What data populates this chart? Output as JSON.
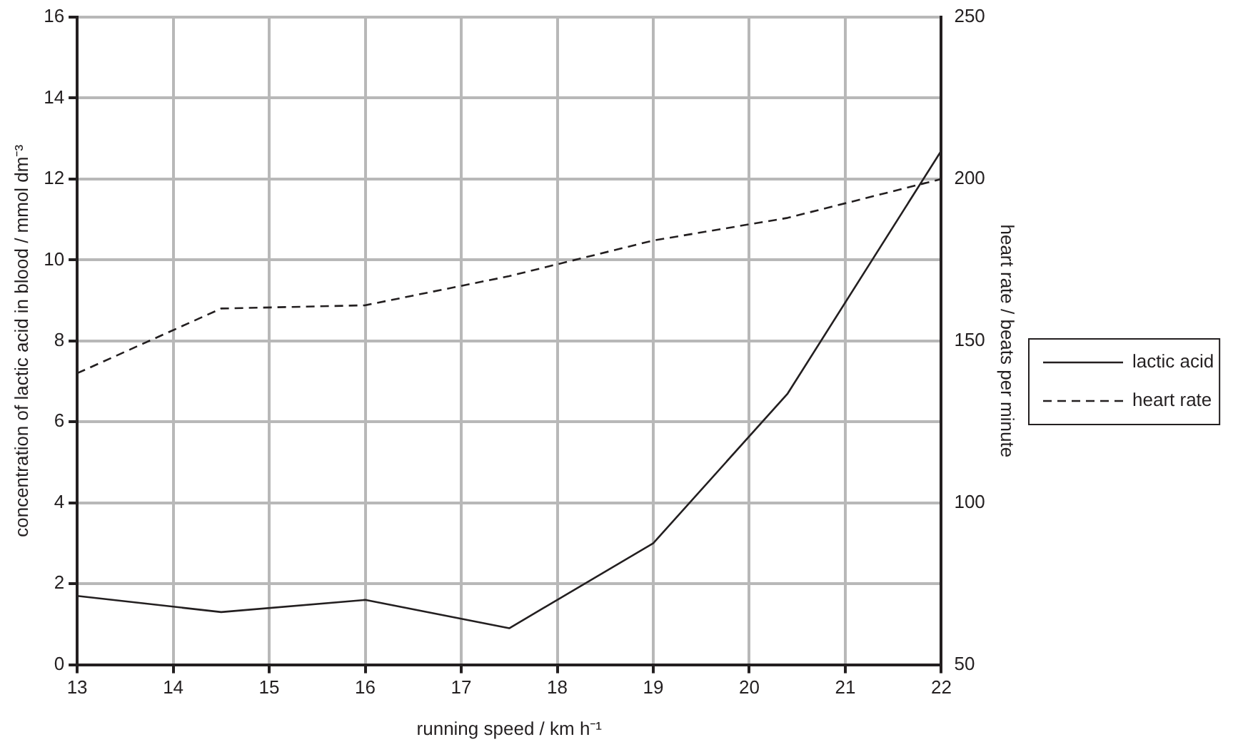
{
  "chart_data": {
    "type": "line",
    "xlabel": "running speed / km h⁻¹",
    "ylabel": "concentration of lactic acid in blood / mmol dm⁻³",
    "y2label": "heart rate / beats per minute",
    "series": [
      {
        "name": "lactic acid",
        "color": "#231f20",
        "line_style": "solid",
        "x": [
          13,
          14.5,
          16,
          17.5,
          19,
          20.4,
          22
        ],
        "values": [
          1.7,
          1.3,
          1.6,
          0.9,
          3.0,
          6.7,
          12.7
        ]
      },
      {
        "name": "heart rate",
        "color": "#231f20",
        "line_style": "dashed",
        "axis": "y2",
        "x": [
          13,
          14.5,
          16,
          17.5,
          19,
          20.4,
          22
        ],
        "values": [
          140,
          160,
          161,
          170,
          181,
          188,
          200
        ]
      }
    ],
    "xlim": [
      13,
      22
    ],
    "xticks": [
      13,
      14,
      15,
      16,
      17,
      18,
      19,
      20,
      21,
      22
    ],
    "ylim": [
      0,
      16
    ],
    "yticks": [
      0,
      2,
      4,
      6,
      8,
      10,
      12,
      14,
      16
    ],
    "y2lim": [
      50,
      250
    ],
    "y2ticks": [
      50,
      100,
      150,
      200,
      250
    ],
    "grid": true,
    "legend": "right",
    "marker": "none"
  }
}
